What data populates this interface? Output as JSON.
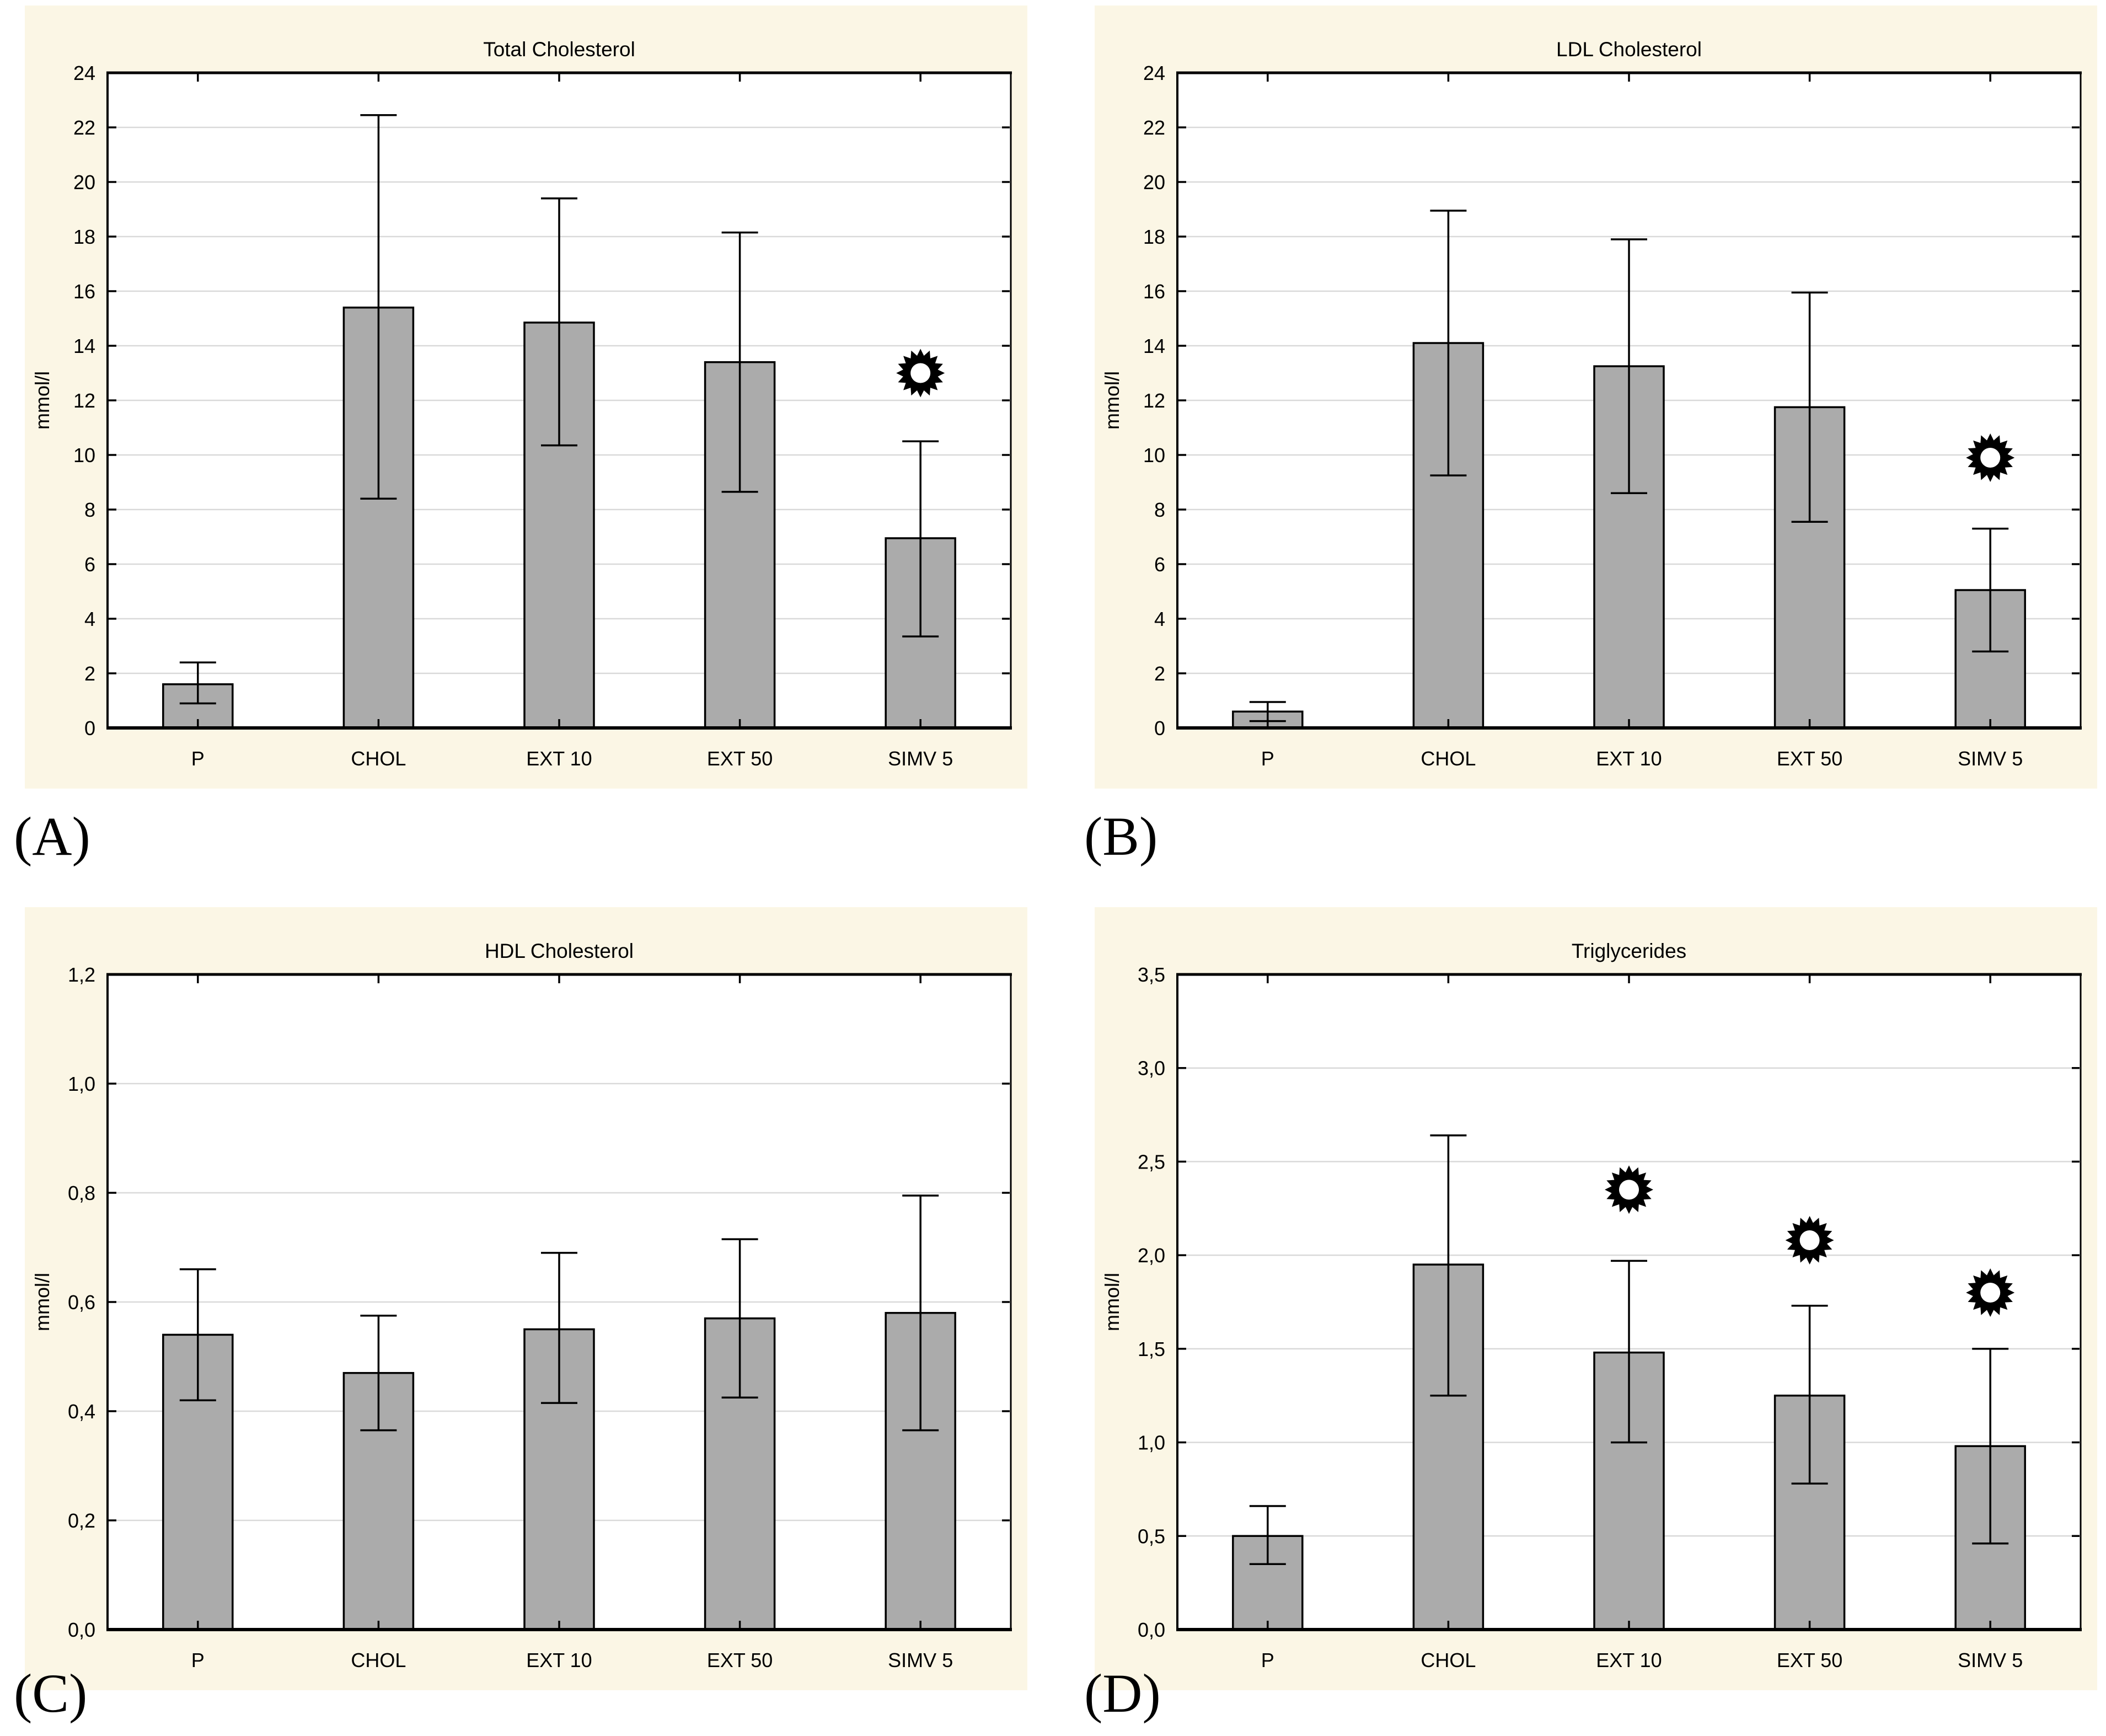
{
  "figure": {
    "colors": {
      "panel_background": "#fbf6e5",
      "plot_background": "#ffffff",
      "bar_fill": "#ababab",
      "bar_border": "#000000",
      "grid": "#d9d9d9",
      "axis": "#000000",
      "marker": "#000000",
      "text": "#000000"
    }
  },
  "chart_data": [
    {
      "type": "bar",
      "panel_label": "(A)",
      "title": "Total Cholesterol",
      "ylabel": "mmol/l",
      "categories": [
        "P",
        "CHOL",
        "EXT 10",
        "EXT 50",
        "SIMV 5"
      ],
      "values": [
        1.6,
        15.4,
        14.85,
        13.4,
        6.95
      ],
      "error_low": [
        0.9,
        8.4,
        10.35,
        8.65,
        3.35
      ],
      "error_high": [
        2.4,
        22.45,
        19.4,
        18.15,
        10.5
      ],
      "ylim": [
        0,
        24
      ],
      "ytick_values": [
        0,
        2,
        4,
        6,
        8,
        10,
        12,
        14,
        16,
        18,
        20,
        22,
        24
      ],
      "ytick_labels": [
        "0",
        "2",
        "4",
        "6",
        "8",
        "10",
        "12",
        "14",
        "16",
        "18",
        "20",
        "22",
        "24"
      ],
      "grid": true,
      "legend": "none",
      "significance_markers": [
        {
          "category": "SIMV 5",
          "y": 13.0,
          "symbol": "starburst"
        }
      ]
    },
    {
      "type": "bar",
      "panel_label": "(B)",
      "title": "LDL Cholesterol",
      "ylabel": "mmol/l",
      "categories": [
        "P",
        "CHOL",
        "EXT 10",
        "EXT 50",
        "SIMV 5"
      ],
      "values": [
        0.6,
        14.1,
        13.25,
        11.75,
        5.05
      ],
      "error_low": [
        0.25,
        9.25,
        8.6,
        7.55,
        2.8
      ],
      "error_high": [
        0.95,
        18.95,
        17.9,
        15.95,
        7.3
      ],
      "ylim": [
        0,
        24
      ],
      "ytick_values": [
        0,
        2,
        4,
        6,
        8,
        10,
        12,
        14,
        16,
        18,
        20,
        22,
        24
      ],
      "ytick_labels": [
        "0",
        "2",
        "4",
        "6",
        "8",
        "10",
        "12",
        "14",
        "16",
        "18",
        "20",
        "22",
        "24"
      ],
      "grid": true,
      "legend": "none",
      "significance_markers": [
        {
          "category": "SIMV 5",
          "y": 9.9,
          "symbol": "starburst"
        }
      ]
    },
    {
      "type": "bar",
      "panel_label": "(C)",
      "title": "HDL Cholesterol",
      "ylabel": "mmol/l",
      "categories": [
        "P",
        "CHOL",
        "EXT 10",
        "EXT 50",
        "SIMV 5"
      ],
      "values": [
        0.54,
        0.47,
        0.55,
        0.57,
        0.58
      ],
      "error_low": [
        0.42,
        0.365,
        0.415,
        0.425,
        0.365
      ],
      "error_high": [
        0.66,
        0.575,
        0.69,
        0.715,
        0.795
      ],
      "ylim": [
        0,
        1.2
      ],
      "ytick_values": [
        0,
        0.2,
        0.4,
        0.6,
        0.8,
        1.0,
        1.2
      ],
      "ytick_labels": [
        "0,0",
        "0,2",
        "0,4",
        "0,6",
        "0,8",
        "1,0",
        "1,2"
      ],
      "grid": true,
      "legend": "none",
      "significance_markers": []
    },
    {
      "type": "bar",
      "panel_label": "(D)",
      "title": "Triglycerides",
      "ylabel": "mmol/l",
      "categories": [
        "P",
        "CHOL",
        "EXT 10",
        "EXT 50",
        "SIMV 5"
      ],
      "values": [
        0.5,
        1.95,
        1.48,
        1.25,
        0.98
      ],
      "error_low": [
        0.35,
        1.25,
        1.0,
        0.78,
        0.46
      ],
      "error_high": [
        0.66,
        2.64,
        1.97,
        1.73,
        1.5
      ],
      "ylim": [
        0,
        3.5
      ],
      "ytick_values": [
        0,
        0.5,
        1.0,
        1.5,
        2.0,
        2.5,
        3.0,
        3.5
      ],
      "ytick_labels": [
        "0,0",
        "0,5",
        "1,0",
        "1,5",
        "2,0",
        "2,5",
        "3,0",
        "3,5"
      ],
      "grid": true,
      "legend": "none",
      "significance_markers": [
        {
          "category": "EXT 10",
          "y": 2.35,
          "symbol": "starburst"
        },
        {
          "category": "EXT 50",
          "y": 2.08,
          "symbol": "starburst"
        },
        {
          "category": "SIMV 5",
          "y": 1.8,
          "symbol": "starburst"
        }
      ]
    }
  ]
}
